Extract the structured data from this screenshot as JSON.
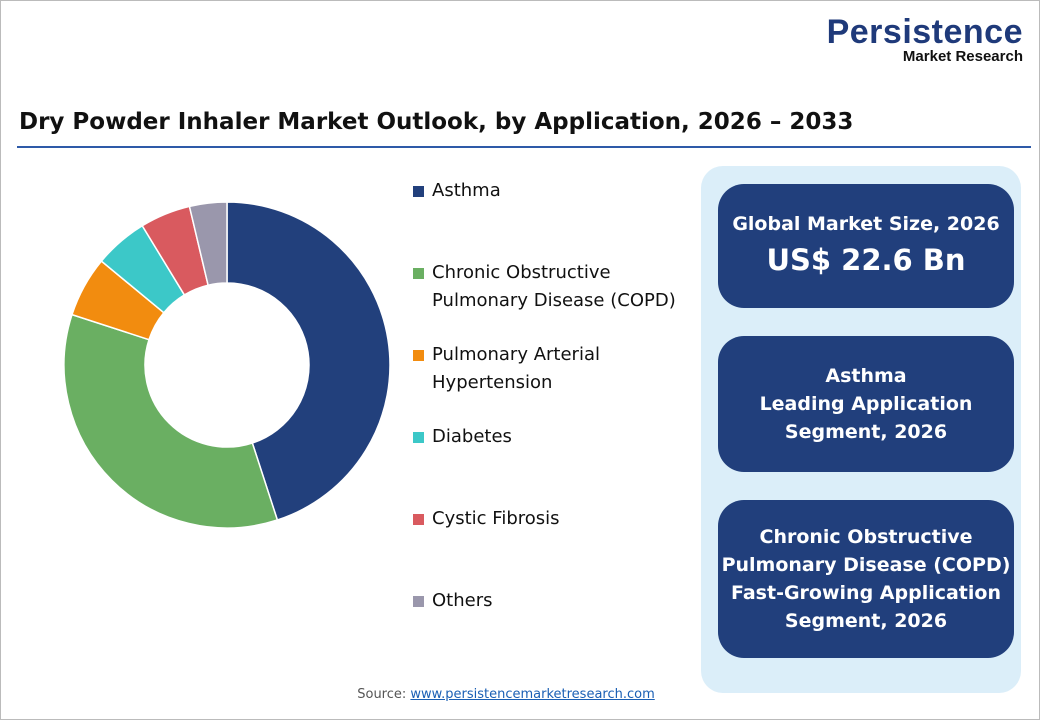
{
  "logo": {
    "line1": "Persistence",
    "line2": "Market Research"
  },
  "title": "Dry Powder Inhaler Market Outlook, by Application, 2026 – 2033",
  "chart_data": {
    "type": "pie",
    "donut": true,
    "title": "Dry Powder Inhaler Market Outlook, by Application, 2026 – 2033",
    "categories": [
      "Asthma",
      "Chronic Obstructive Pulmonary Disease (COPD)",
      "Pulmonary Arterial Hypertension",
      "Diabetes",
      "Cystic Fibrosis",
      "Others"
    ],
    "legend_lines": [
      [
        "Asthma"
      ],
      [
        "Chronic Obstructive",
        "Pulmonary Disease (COPD)"
      ],
      [
        "Pulmonary Arterial",
        "Hypertension"
      ],
      [
        "Diabetes"
      ],
      [
        "Cystic Fibrosis"
      ],
      [
        "Others"
      ]
    ],
    "values": [
      45,
      35,
      6,
      5.3,
      5,
      3.7
    ],
    "colors": [
      "#22407c",
      "#6aaf62",
      "#f28c0f",
      "#3cc8c8",
      "#d95a5f",
      "#9a97ac"
    ],
    "legend_position": "right"
  },
  "cards": [
    {
      "lines": [
        "Global Market Size, 2026"
      ],
      "big": "US$ 22.6 Bn"
    },
    {
      "lines": [
        "Asthma",
        "Leading Application",
        "Segment, 2026"
      ]
    },
    {
      "lines": [
        "Chronic Obstructive",
        "Pulmonary Disease (COPD)",
        "Fast-Growing Application",
        "Segment, 2026"
      ]
    }
  ],
  "source": {
    "label": "Source:",
    "link": "www.persistencemarketresearch.com"
  }
}
